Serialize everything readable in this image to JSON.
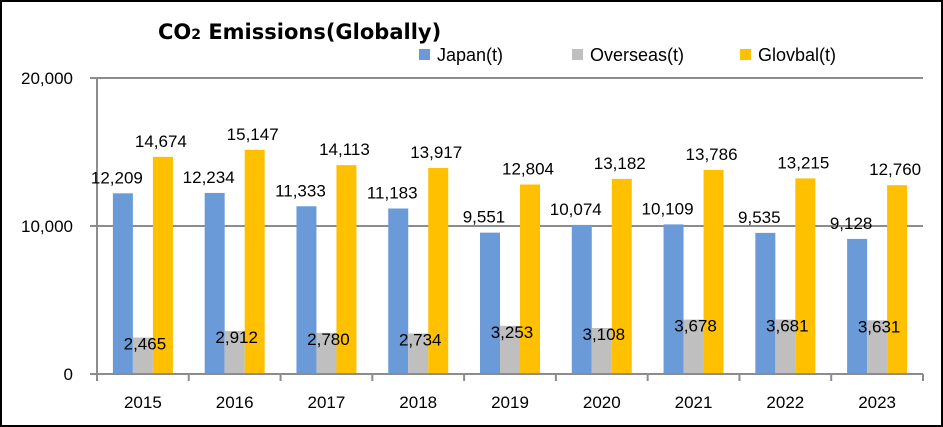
{
  "chart_data": {
    "type": "bar",
    "title": "CO₂ Emissions(Globally)",
    "title_main": "CO",
    "title_sub": "2",
    "title_rest": " Emissions(Globally)",
    "xlabel": "",
    "ylabel": "",
    "ylim": [
      0,
      20000
    ],
    "yticks": [
      0,
      10000,
      20000
    ],
    "ytick_labels": [
      "0",
      "10,000",
      "20,000"
    ],
    "grid": true,
    "legend_position": "top-right",
    "categories": [
      "2015",
      "2016",
      "2017",
      "2018",
      "2019",
      "2020",
      "2021",
      "2022",
      "2023"
    ],
    "series": [
      {
        "name": "Japan(t)",
        "color": "#6a9bd8",
        "values": [
          12209,
          12234,
          11333,
          11183,
          9551,
          10074,
          10109,
          9535,
          9128
        ],
        "labels": [
          "12,209",
          "12,234",
          "11,333",
          "11,183",
          "9,551",
          "10,074",
          "10,109",
          "9,535",
          "9,128"
        ]
      },
      {
        "name": "Overseas(t)",
        "color": "#bfbfbf",
        "values": [
          2465,
          2912,
          2780,
          2734,
          3253,
          3108,
          3678,
          3681,
          3631
        ],
        "labels": [
          "2,465",
          "2,912",
          "2,780",
          "2,734",
          "3,253",
          "3,108",
          "3,678",
          "3,681",
          "3,631"
        ]
      },
      {
        "name": "Glovbal(t)",
        "color": "#ffc000",
        "values": [
          14674,
          15147,
          14113,
          13917,
          12804,
          13182,
          13786,
          13215,
          12760
        ],
        "labels": [
          "14,674",
          "15,147",
          "14,113",
          "13,917",
          "12,804",
          "13,182",
          "13,786",
          "13,215",
          "12,760"
        ]
      }
    ]
  },
  "colors": {
    "gridline": "#8c8c8c",
    "axis": "#8c8c8c",
    "border": "#000000"
  }
}
